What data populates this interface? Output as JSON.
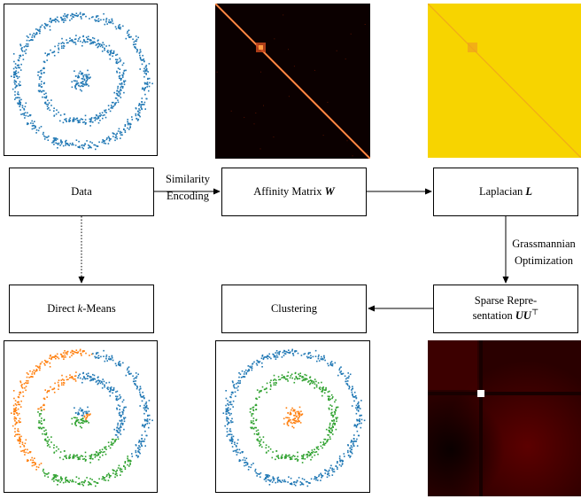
{
  "boxes": {
    "data": "Data",
    "affinity_prefix": "Affinity Matrix ",
    "affinity_symbol": "W",
    "laplacian_prefix": "Laplacian ",
    "laplacian_symbol": "L",
    "kmeans_prefix": "Direct ",
    "kmeans_k": "k",
    "kmeans_suffix": "-Means",
    "clustering": "Clustering",
    "sparse_line1": "Sparse Repre-",
    "sparse_line2_prefix": "sentation ",
    "sparse_symbol": "UU",
    "sparse_sup": "⊤"
  },
  "edges": {
    "similarity_line1": "Similarity",
    "similarity_line2": "Encoding",
    "grassmann_line1": "Grassmannian",
    "grassmann_line2": "Optimization"
  },
  "colors": {
    "blue": "#1f77b4",
    "orange": "#ff7f0e",
    "green": "#2ca02c",
    "affinity_bg": "#0b0000",
    "laplacian_bg": "#f7d400",
    "sparse_bg": "#3a0000"
  }
}
